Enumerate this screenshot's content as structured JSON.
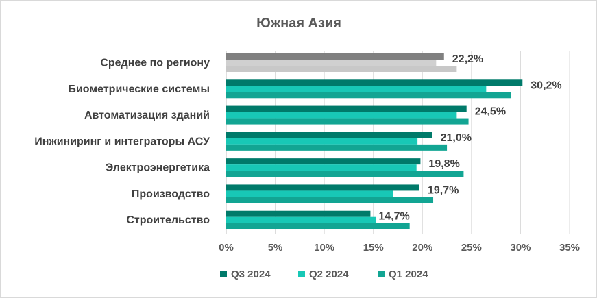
{
  "chart_data": {
    "type": "bar",
    "orientation": "horizontal",
    "title": "Южная Азия",
    "categories": [
      "Среднее по региону",
      "Биометрические системы",
      "Автоматизация зданий",
      "Инжиниринг и интеграторы АСУ",
      "Электроэнергетика",
      "Производство",
      "Строительство"
    ],
    "series": [
      {
        "name": "Q3 2024",
        "color": "#007a6a",
        "values": [
          22.2,
          30.2,
          24.5,
          21.0,
          19.8,
          19.7,
          14.7
        ]
      },
      {
        "name": "Q2 2024",
        "color": "#18c8b6",
        "values": [
          21.4,
          26.5,
          23.5,
          19.5,
          19.4,
          17.0,
          15.3
        ]
      },
      {
        "name": "Q1 2024",
        "color": "#12a593",
        "values": [
          23.5,
          29.0,
          24.7,
          22.5,
          24.2,
          21.1,
          18.7
        ]
      }
    ],
    "average_row_colors": [
      "#808080",
      "#d0d0d0",
      "#c8c8c8"
    ],
    "data_labels": [
      "22,2%",
      "30,2%",
      "24,5%",
      "21,0%",
      "19,8%",
      "19,7%",
      "14,7%"
    ],
    "x_ticks": [
      "0%",
      "5%",
      "10%",
      "15%",
      "20%",
      "25%",
      "30%",
      "35%"
    ],
    "xlim": [
      0,
      35
    ],
    "grid": "vertical",
    "legend_position": "bottom"
  }
}
